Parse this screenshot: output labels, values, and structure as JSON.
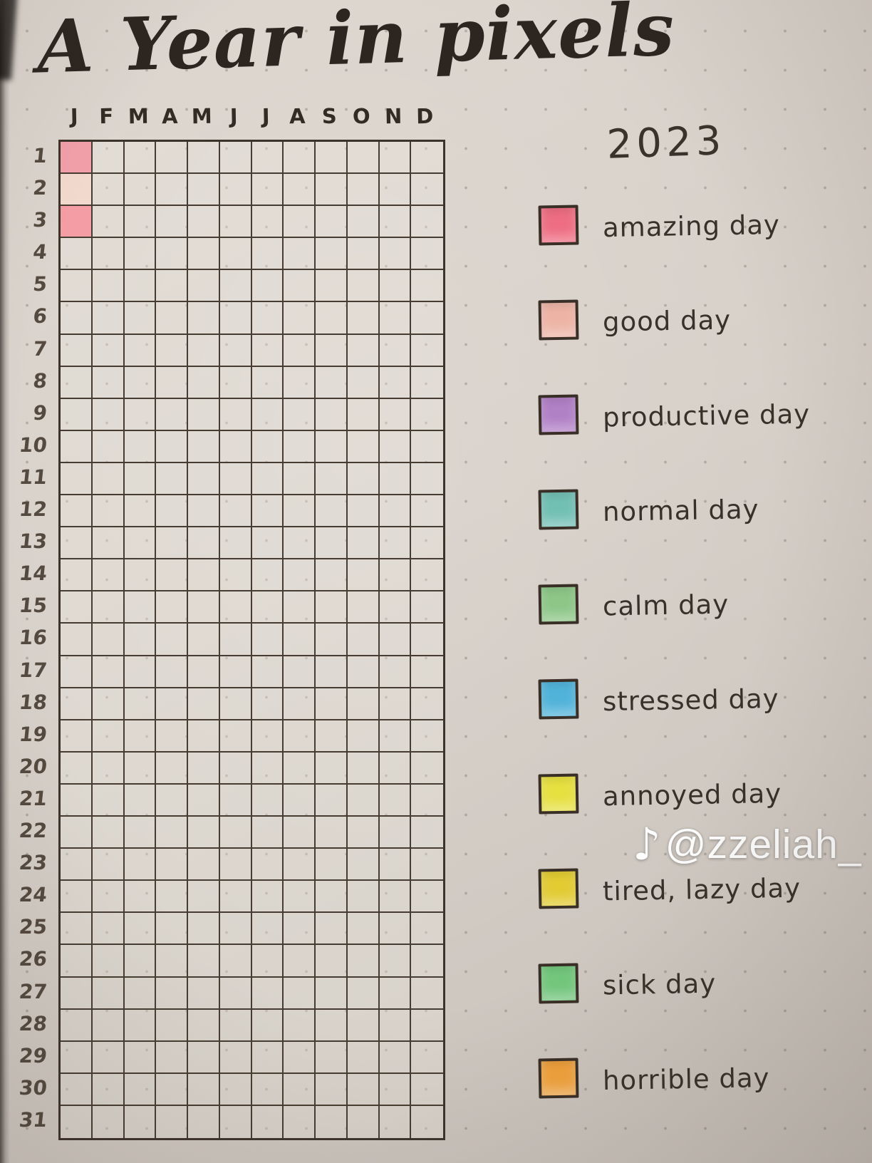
{
  "page": {
    "title": "A Year in pixels",
    "year": "2023",
    "watermark": {
      "handle": "@zzeliah_",
      "icon": "tiktok-music-note"
    }
  },
  "colors": {
    "paper": "#d7d0c9",
    "ink": "#332b24",
    "pencil": "#554a3f",
    "watermark_text": "#ffffff"
  },
  "grid": {
    "rows": 31,
    "cols": 12,
    "days": [
      1,
      2,
      3,
      4,
      5,
      6,
      7,
      8,
      9,
      10,
      11,
      12,
      13,
      14,
      15,
      16,
      17,
      18,
      19,
      20,
      21,
      22,
      23,
      24,
      25,
      26,
      27,
      28,
      29,
      30,
      31
    ]
  },
  "chart_data": {
    "type": "heatmap",
    "title": "A Year in pixels",
    "subtitle": "2023",
    "x_categories": [
      "J",
      "F",
      "M",
      "A",
      "M",
      "J",
      "J",
      "A",
      "S",
      "O",
      "N",
      "D"
    ],
    "y_categories": [
      1,
      2,
      3,
      4,
      5,
      6,
      7,
      8,
      9,
      10,
      11,
      12,
      13,
      14,
      15,
      16,
      17,
      18,
      19,
      20,
      21,
      22,
      23,
      24,
      25,
      26,
      27,
      28,
      29,
      30,
      31
    ],
    "legend_position": "right",
    "grid": true,
    "legend": [
      {
        "label": "amazing day",
        "color": "#ee6d82"
      },
      {
        "label": "good day",
        "color": "#edb4a6"
      },
      {
        "label": "productive day",
        "color": "#b180c6"
      },
      {
        "label": "normal day",
        "color": "#72bfb4"
      },
      {
        "label": "calm day",
        "color": "#8dc687"
      },
      {
        "label": "stressed day",
        "color": "#51b3d9"
      },
      {
        "label": "annoyed day",
        "color": "#e6e041"
      },
      {
        "label": "tired, lazy day",
        "color": "#e2cb33"
      },
      {
        "label": "sick day",
        "color": "#73c77d"
      },
      {
        "label": "horrible day",
        "color": "#f2a33d"
      }
    ],
    "entries": [
      {
        "day": 1,
        "month": "J",
        "month_index": 1,
        "mood": "amazing day",
        "color": "#f29fa9"
      },
      {
        "day": 2,
        "month": "J",
        "month_index": 1,
        "mood": "good day",
        "color": "#f2d9cd"
      },
      {
        "day": 3,
        "month": "J",
        "month_index": 1,
        "mood": "amazing day",
        "color": "#f59da5"
      }
    ]
  }
}
